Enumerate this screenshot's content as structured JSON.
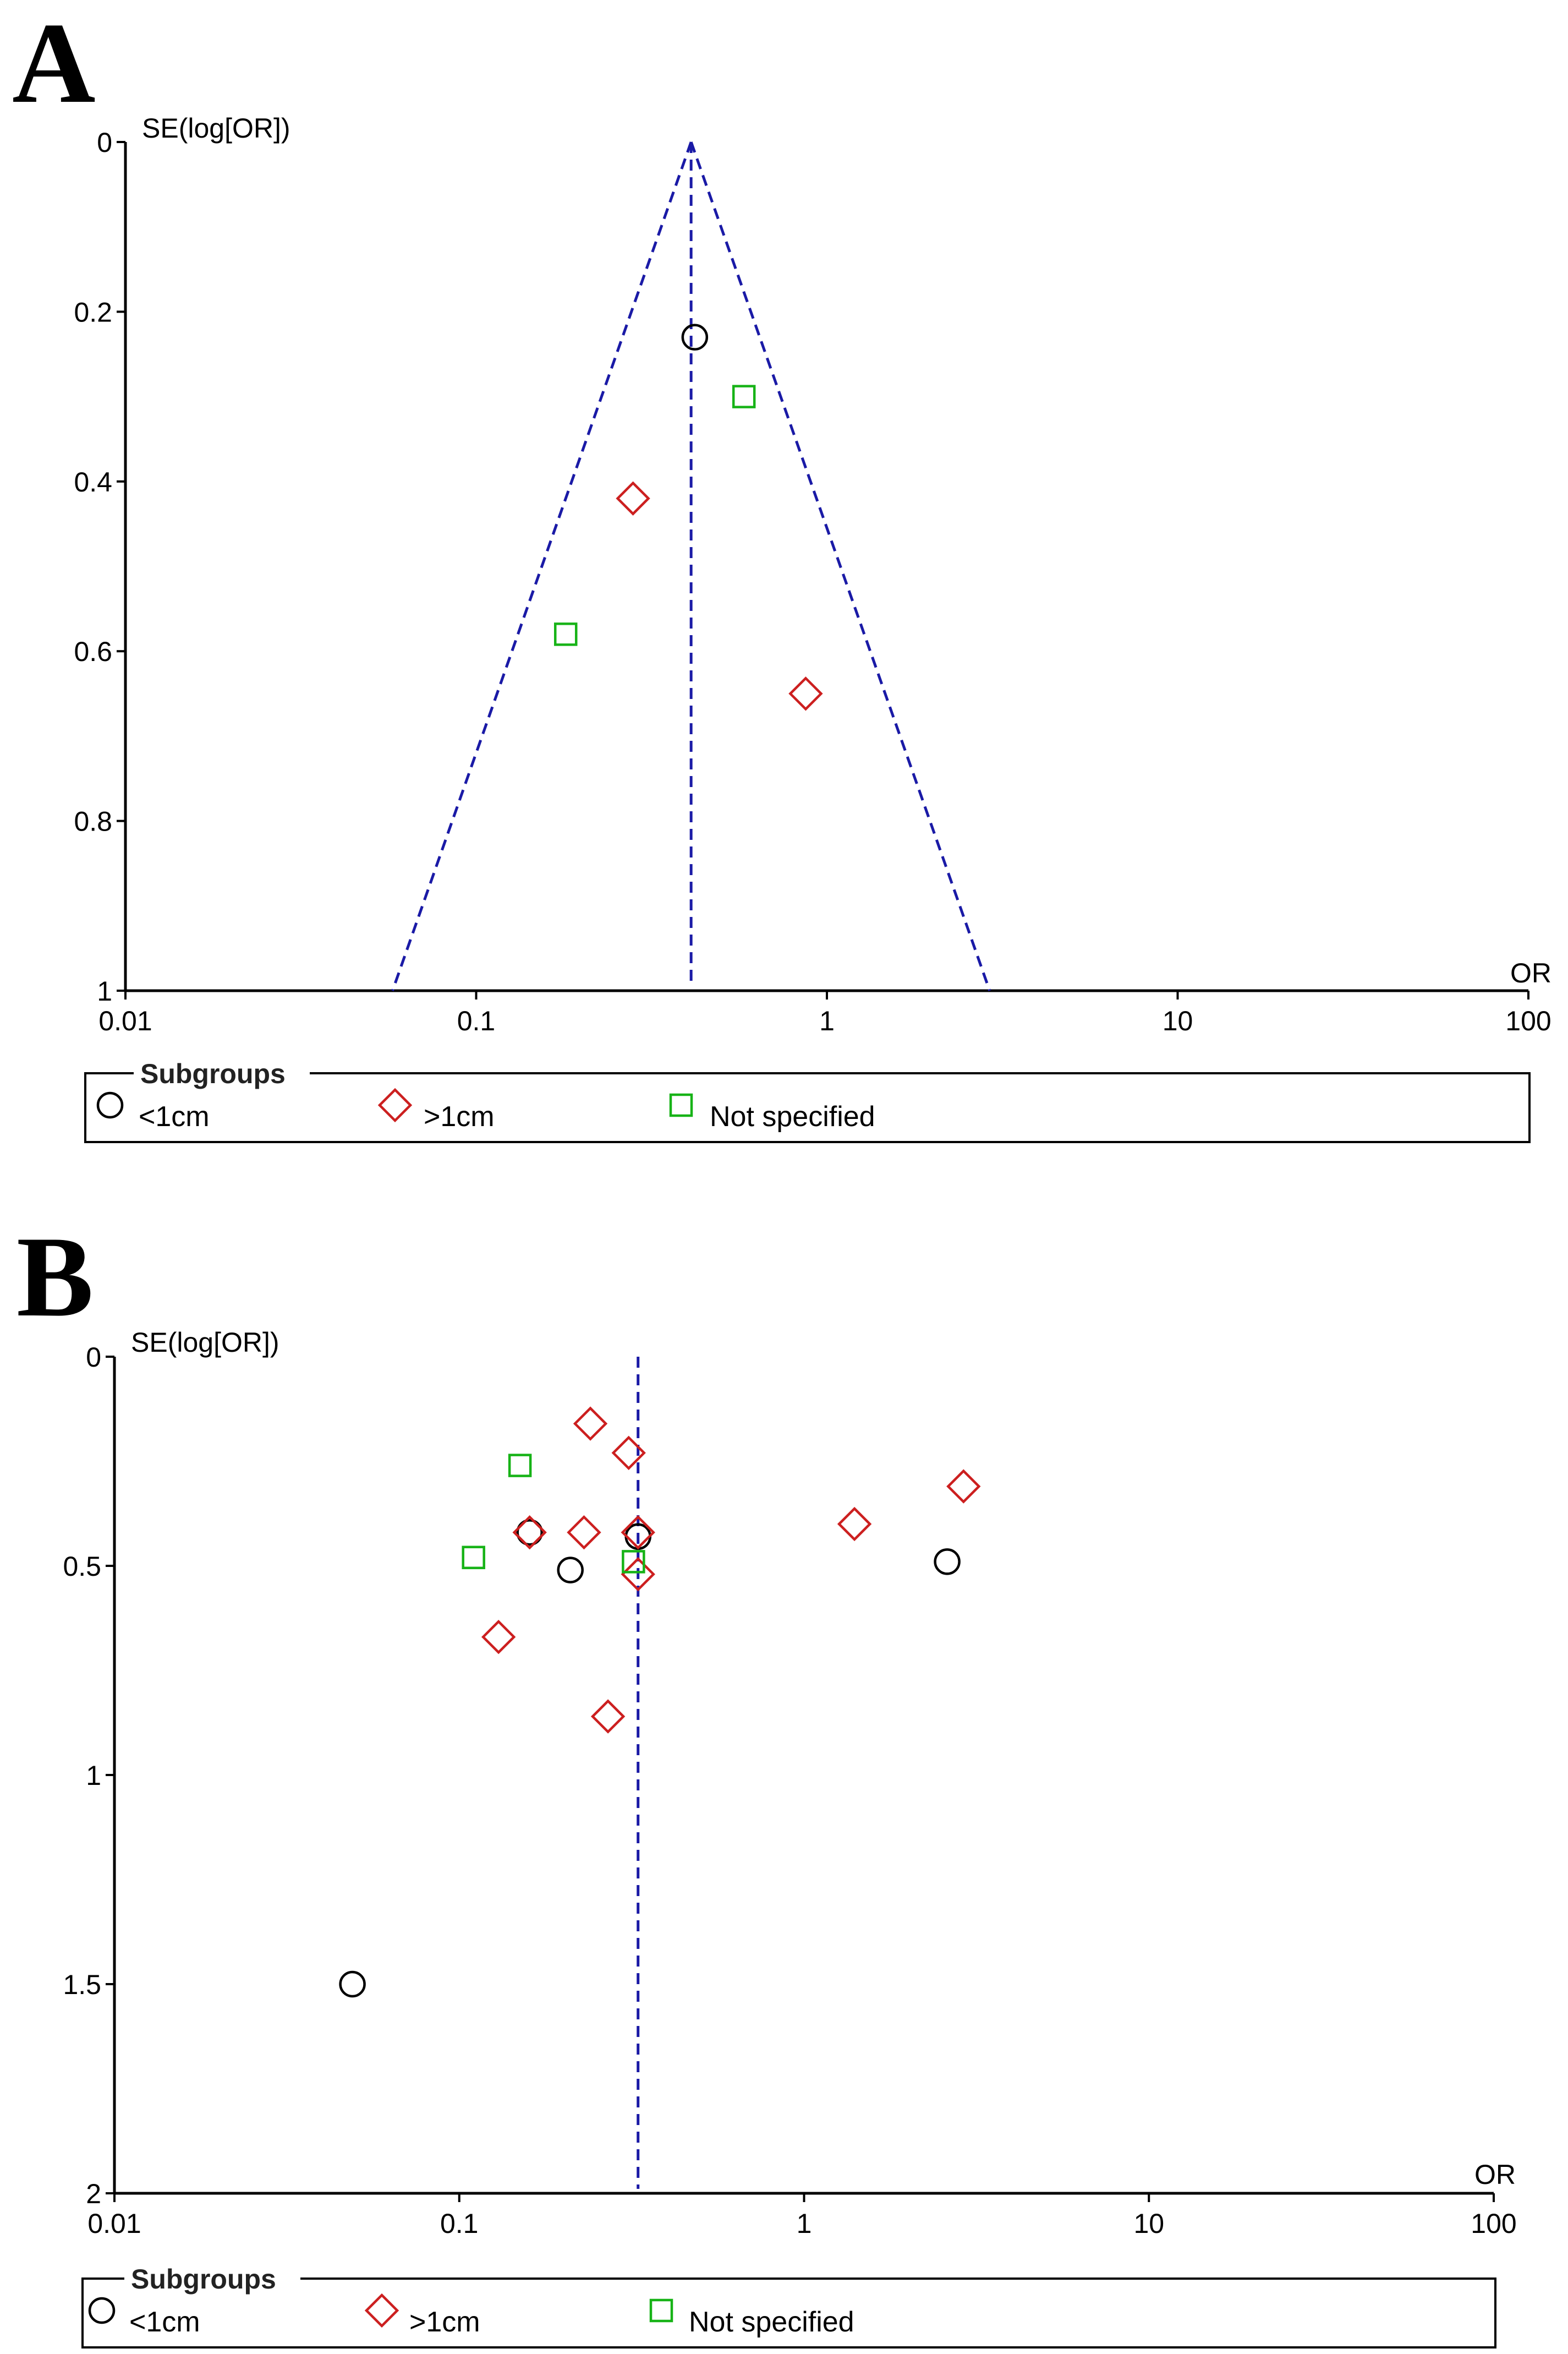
{
  "colors": {
    "circle": "#000000",
    "diamond": "#cc1f1f",
    "square": "#17b317",
    "funnel": "#1a1aa6"
  },
  "chart_data": [
    {
      "panel": "A",
      "type": "scatter",
      "title": "",
      "xlabel": "OR",
      "ylabel": "SE(log[OR])",
      "xscale": "log",
      "xlim": [
        0.01,
        100
      ],
      "ylim": [
        0,
        1
      ],
      "yreversed": true,
      "xticks": [
        0.01,
        0.1,
        1,
        10,
        100
      ],
      "xtick_labels": [
        "0.01",
        "0.1",
        "1",
        "10",
        "100"
      ],
      "yticks": [
        0,
        0.2,
        0.4,
        0.6,
        0.8,
        1
      ],
      "ytick_labels": [
        "0",
        "0.2",
        "0.4",
        "0.6",
        "0.8",
        "1"
      ],
      "pooled_or": 0.41,
      "funnel": true,
      "legend": {
        "title": "Subgroups",
        "items": [
          {
            "label": "<1cm",
            "marker": "circle"
          },
          {
            "label": ">1cm",
            "marker": "diamond"
          },
          {
            "label": "Not specified",
            "marker": "square"
          }
        ]
      },
      "series": [
        {
          "name": "<1cm",
          "marker": "circle",
          "points": [
            {
              "or": 0.42,
              "se": 0.23
            }
          ]
        },
        {
          "name": ">1cm",
          "marker": "diamond",
          "points": [
            {
              "or": 0.28,
              "se": 0.42
            },
            {
              "or": 0.87,
              "se": 0.65
            }
          ]
        },
        {
          "name": "Not specified",
          "marker": "square",
          "points": [
            {
              "or": 0.58,
              "se": 0.3
            },
            {
              "or": 0.18,
              "se": 0.58
            }
          ]
        }
      ]
    },
    {
      "panel": "B",
      "type": "scatter",
      "title": "",
      "xlabel": "OR",
      "ylabel": "SE(log[OR])",
      "xscale": "log",
      "xlim": [
        0.01,
        100
      ],
      "ylim": [
        0,
        2
      ],
      "yreversed": true,
      "xticks": [
        0.01,
        0.1,
        1,
        10,
        100
      ],
      "xtick_labels": [
        "0.01",
        "0.1",
        "1",
        "10",
        "100"
      ],
      "yticks": [
        0,
        0.5,
        1,
        1.5,
        2
      ],
      "ytick_labels": [
        "0",
        "0.5",
        "1",
        "1.5",
        "2"
      ],
      "pooled_or": 0.33,
      "funnel": false,
      "legend": {
        "title": "Subgroups",
        "items": [
          {
            "label": "<1cm",
            "marker": "circle"
          },
          {
            "label": ">1cm",
            "marker": "diamond"
          },
          {
            "label": "Not specified",
            "marker": "square"
          }
        ]
      },
      "series": [
        {
          "name": "<1cm",
          "marker": "circle",
          "points": [
            {
              "or": 0.16,
              "se": 0.42
            },
            {
              "or": 0.21,
              "se": 0.51
            },
            {
              "or": 0.33,
              "se": 0.43
            },
            {
              "or": 2.6,
              "se": 0.49
            },
            {
              "or": 0.049,
              "se": 1.5
            }
          ]
        },
        {
          "name": ">1cm",
          "marker": "diamond",
          "points": [
            {
              "or": 0.24,
              "se": 0.16
            },
            {
              "or": 0.31,
              "se": 0.23
            },
            {
              "or": 2.9,
              "se": 0.31
            },
            {
              "or": 0.16,
              "se": 0.42
            },
            {
              "or": 0.23,
              "se": 0.42
            },
            {
              "or": 0.33,
              "se": 0.42
            },
            {
              "or": 1.4,
              "se": 0.4
            },
            {
              "or": 0.33,
              "se": 0.52
            },
            {
              "or": 0.13,
              "se": 0.67
            },
            {
              "or": 0.27,
              "se": 0.86
            }
          ]
        },
        {
          "name": "Not specified",
          "marker": "square",
          "points": [
            {
              "or": 0.15,
              "se": 0.26
            },
            {
              "or": 0.11,
              "se": 0.48
            },
            {
              "or": 0.32,
              "se": 0.49
            }
          ]
        }
      ]
    }
  ]
}
